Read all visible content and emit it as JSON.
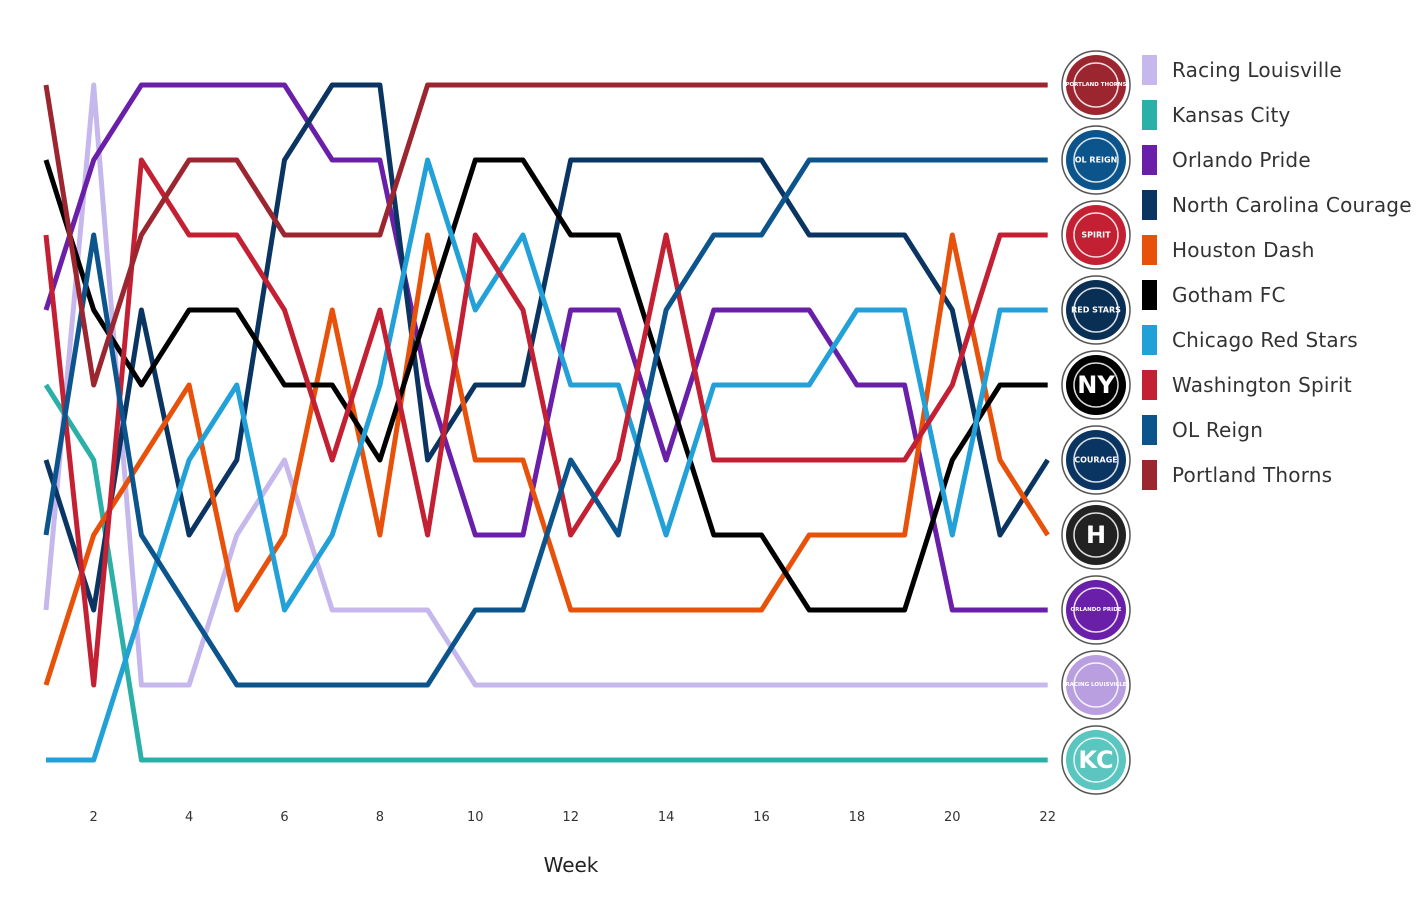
{
  "chart_data": {
    "type": "line",
    "xlabel": "Week",
    "ylabel": "",
    "x": [
      1,
      2,
      3,
      4,
      5,
      6,
      7,
      8,
      9,
      10,
      11,
      12,
      13,
      14,
      15,
      16,
      17,
      18,
      19,
      20,
      21,
      22
    ],
    "xticks": [
      2,
      4,
      6,
      8,
      10,
      12,
      14,
      16,
      18,
      20,
      22
    ],
    "ylim": [
      1,
      10
    ],
    "y_inverted": true,
    "grid": false,
    "legend_position": "right",
    "series": [
      {
        "name": "Racing Louisville",
        "color": "#c6b8ec",
        "values": [
          8,
          1,
          9,
          9,
          7,
          6,
          8,
          8,
          8,
          9,
          9,
          9,
          9,
          9,
          9,
          9,
          9,
          9,
          9,
          9,
          9,
          9
        ]
      },
      {
        "name": "Kansas City",
        "color": "#2bb0a8",
        "values": [
          5,
          6,
          10,
          10,
          10,
          10,
          10,
          10,
          10,
          10,
          10,
          10,
          10,
          10,
          10,
          10,
          10,
          10,
          10,
          10,
          10,
          10
        ]
      },
      {
        "name": "Orlando Pride",
        "color": "#6a1fa9",
        "values": [
          4,
          2,
          1,
          1,
          1,
          1,
          2,
          2,
          5,
          7,
          7,
          4,
          4,
          6,
          4,
          4,
          4,
          5,
          5,
          8,
          8,
          8
        ]
      },
      {
        "name": "North Carolina Courage",
        "color": "#0a3562",
        "values": [
          6,
          8,
          4,
          7,
          6,
          2,
          1,
          1,
          6,
          5,
          5,
          2,
          2,
          2,
          2,
          2,
          3,
          3,
          3,
          4,
          7,
          6
        ]
      },
      {
        "name": "Houston Dash",
        "color": "#e8510a",
        "values": [
          9,
          7,
          6,
          5,
          8,
          7,
          4,
          7,
          3,
          6,
          6,
          8,
          8,
          8,
          8,
          8,
          7,
          7,
          7,
          3,
          6,
          7
        ]
      },
      {
        "name": "Gotham FC",
        "color": "#000000",
        "values": [
          2,
          4,
          5,
          4,
          4,
          5,
          5,
          6,
          4,
          2,
          2,
          3,
          3,
          5,
          7,
          7,
          8,
          8,
          8,
          6,
          5,
          5
        ]
      },
      {
        "name": "Chicago Red Stars",
        "color": "#22a0d8",
        "values": [
          10,
          10,
          8,
          6,
          5,
          8,
          7,
          5,
          2,
          4,
          3,
          5,
          5,
          7,
          5,
          5,
          5,
          4,
          4,
          7,
          4,
          4
        ]
      },
      {
        "name": "Washington Spirit",
        "color": "#c42033",
        "values": [
          3,
          9,
          2,
          3,
          3,
          4,
          6,
          4,
          7,
          3,
          4,
          7,
          6,
          3,
          6,
          6,
          6,
          6,
          6,
          5,
          3,
          3
        ]
      },
      {
        "name": "OL Reign",
        "color": "#0b548c",
        "values": [
          7,
          3,
          7,
          8,
          9,
          9,
          9,
          9,
          9,
          8,
          8,
          6,
          7,
          4,
          3,
          3,
          2,
          2,
          2,
          2,
          2,
          2
        ]
      },
      {
        "name": "Portland Thorns",
        "color": "#9c2630",
        "values": [
          1,
          5,
          3,
          2,
          2,
          3,
          3,
          3,
          1,
          1,
          1,
          1,
          1,
          1,
          1,
          1,
          1,
          1,
          1,
          1,
          1,
          1
        ]
      }
    ],
    "end_logos": [
      {
        "rank": 1,
        "team": "Portland Thorns",
        "icon": "portland-thorns-logo",
        "bg": "#9c2630",
        "text": "PORTLAND THORNS"
      },
      {
        "rank": 2,
        "team": "OL Reign",
        "icon": "ol-reign-logo",
        "bg": "#0b548c",
        "text": "OL REIGN"
      },
      {
        "rank": 3,
        "team": "Washington Spirit",
        "icon": "washington-spirit-logo",
        "bg": "#c42033",
        "text": "SPIRIT"
      },
      {
        "rank": 4,
        "team": "Chicago Red Stars",
        "icon": "chicago-red-stars-logo",
        "bg": "#0a2f55",
        "text": "RED STARS"
      },
      {
        "rank": 5,
        "team": "Gotham FC",
        "icon": "gotham-fc-logo",
        "bg": "#000000",
        "text": "NY"
      },
      {
        "rank": 6,
        "team": "North Carolina Courage",
        "icon": "nc-courage-logo",
        "bg": "#0a3562",
        "text": "COURAGE"
      },
      {
        "rank": 7,
        "team": "Houston Dash",
        "icon": "houston-dash-logo",
        "bg": "#222222",
        "text": "H"
      },
      {
        "rank": 8,
        "team": "Orlando Pride",
        "icon": "orlando-pride-logo",
        "bg": "#6a1fa9",
        "text": "ORLANDO PRIDE"
      },
      {
        "rank": 9,
        "team": "Racing Louisville",
        "icon": "racing-louisville-logo",
        "bg": "#b99ee0",
        "text": "RACING LOUISVILLE"
      },
      {
        "rank": 10,
        "team": "Kansas City",
        "icon": "kansas-city-logo",
        "bg": "#5bc6c0",
        "text": "KC"
      }
    ]
  }
}
